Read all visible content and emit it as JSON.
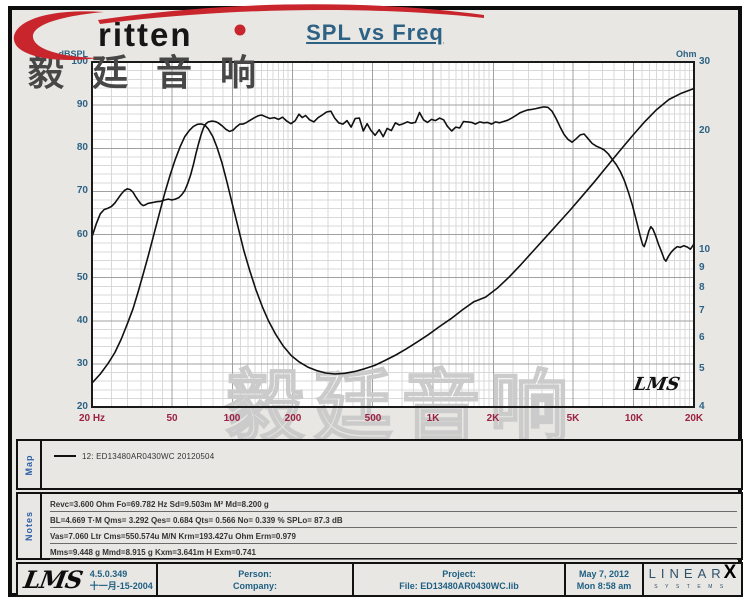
{
  "brand": {
    "logo_text": "ritten",
    "swoosh_color": "#c8252c"
  },
  "title": "SPL vs Freq",
  "watermark": {
    "top": "毅廷音响",
    "bottom": "毅廷音响"
  },
  "chart_data": {
    "type": "line",
    "title": "SPL vs Freq",
    "left_axis": {
      "label": "dBSPL",
      "range": [
        20,
        100
      ],
      "ticks": [
        100,
        90,
        80,
        70,
        60,
        50,
        40,
        30,
        20
      ]
    },
    "right_axis": {
      "label": "Ohm",
      "scale": "log",
      "range": [
        4,
        30
      ],
      "ticks": [
        30,
        20,
        10,
        9,
        8,
        7,
        6,
        5,
        4
      ]
    },
    "x_axis": {
      "scale": "log",
      "range": [
        20,
        20000
      ],
      "ticks": [
        {
          "f": 20,
          "label": "20 Hz"
        },
        {
          "f": 50,
          "label": "50"
        },
        {
          "f": 100,
          "label": "100"
        },
        {
          "f": 200,
          "label": "200"
        },
        {
          "f": 500,
          "label": "500"
        },
        {
          "f": 1000,
          "label": "1K"
        },
        {
          "f": 2000,
          "label": "2K"
        },
        {
          "f": 5000,
          "label": "5K"
        },
        {
          "f": 10000,
          "label": "10K"
        },
        {
          "f": 20000,
          "label": "20K"
        }
      ]
    },
    "grid": {
      "major_freqs": [
        50,
        100,
        200,
        500,
        1000,
        2000,
        5000,
        10000,
        20000
      ],
      "minor_freqs": [
        25,
        30,
        35,
        40,
        45,
        60,
        70,
        80,
        90,
        110,
        120,
        130,
        140,
        150,
        160,
        170,
        180,
        190,
        250,
        300,
        350,
        400,
        450,
        600,
        700,
        800,
        900,
        1100,
        1200,
        1300,
        1400,
        1500,
        1600,
        1700,
        1800,
        1900,
        2500,
        3000,
        3500,
        4000,
        4500,
        6000,
        7000,
        8000,
        9000,
        11000,
        12000,
        13000,
        14000,
        15000,
        16000,
        17000,
        18000,
        19000
      ],
      "db_major_step": 10,
      "db_minor_step": 2
    },
    "lms_mark": "LMS",
    "series": [
      {
        "name": "SPL (dB)",
        "axis": "left",
        "points": [
          [
            20,
            59.5
          ],
          [
            21,
            62.5
          ],
          [
            22,
            64.8
          ],
          [
            23,
            65.8
          ],
          [
            24,
            66.1
          ],
          [
            25,
            66.5
          ],
          [
            26,
            67.3
          ],
          [
            27,
            68.4
          ],
          [
            28,
            69.4
          ],
          [
            29,
            70.2
          ],
          [
            30,
            70.6
          ],
          [
            31,
            70.4
          ],
          [
            32,
            69.8
          ],
          [
            33,
            68.8
          ],
          [
            34,
            67.9
          ],
          [
            35,
            67.1
          ],
          [
            36,
            66.7
          ],
          [
            37,
            66.9
          ],
          [
            38,
            67.2
          ],
          [
            40,
            67.4
          ],
          [
            42,
            67.6
          ],
          [
            44,
            67.7
          ],
          [
            46,
            68.0
          ],
          [
            48,
            68.2
          ],
          [
            50,
            68.0
          ],
          [
            52,
            68.2
          ],
          [
            54,
            68.5
          ],
          [
            56,
            69.2
          ],
          [
            58,
            70.2
          ],
          [
            60,
            71.8
          ],
          [
            62,
            73.8
          ],
          [
            64,
            76.2
          ],
          [
            66,
            78.8
          ],
          [
            68,
            81.2
          ],
          [
            70,
            83.2
          ],
          [
            72,
            84.8
          ],
          [
            74,
            85.7
          ],
          [
            76,
            86.1
          ],
          [
            79,
            86.3
          ],
          [
            82,
            86.2
          ],
          [
            85,
            85.9
          ],
          [
            89,
            85.2
          ],
          [
            93,
            84.4
          ],
          [
            97,
            83.9
          ],
          [
            101,
            84.2
          ],
          [
            105,
            85.0
          ],
          [
            109,
            85.6
          ],
          [
            113,
            85.6
          ],
          [
            117,
            85.9
          ],
          [
            122,
            86.4
          ],
          [
            128,
            87.0
          ],
          [
            134,
            87.5
          ],
          [
            140,
            87.7
          ],
          [
            147,
            87.3
          ],
          [
            154,
            86.9
          ],
          [
            162,
            87.1
          ],
          [
            170,
            86.7
          ],
          [
            178,
            87.2
          ],
          [
            187,
            86.3
          ],
          [
            196,
            85.7
          ],
          [
            206,
            86.4
          ],
          [
            215,
            87.9
          ],
          [
            223,
            87.1
          ],
          [
            232,
            87.6
          ],
          [
            243,
            86.6
          ],
          [
            255,
            86.1
          ],
          [
            268,
            87.1
          ],
          [
            281,
            87.7
          ],
          [
            295,
            88.4
          ],
          [
            310,
            88.6
          ],
          [
            324,
            87.0
          ],
          [
            339,
            85.9
          ],
          [
            356,
            85.6
          ],
          [
            373,
            86.4
          ],
          [
            391,
            84.9
          ],
          [
            410,
            86.9
          ],
          [
            430,
            87.0
          ],
          [
            450,
            84.0
          ],
          [
            470,
            85.7
          ],
          [
            492,
            84.1
          ],
          [
            515,
            83.0
          ],
          [
            540,
            84.3
          ],
          [
            565,
            82.7
          ],
          [
            592,
            84.6
          ],
          [
            620,
            84.1
          ],
          [
            650,
            85.9
          ],
          [
            680,
            85.4
          ],
          [
            712,
            85.7
          ],
          [
            746,
            86.1
          ],
          [
            781,
            85.8
          ],
          [
            818,
            86.0
          ],
          [
            857,
            88.3
          ],
          [
            897,
            86.6
          ],
          [
            940,
            86.0
          ],
          [
            984,
            86.7
          ],
          [
            1030,
            86.4
          ],
          [
            1080,
            87.0
          ],
          [
            1130,
            86.6
          ],
          [
            1180,
            85.1
          ],
          [
            1240,
            84.0
          ],
          [
            1300,
            84.9
          ],
          [
            1360,
            84.7
          ],
          [
            1420,
            86.2
          ],
          [
            1490,
            86.1
          ],
          [
            1560,
            86.0
          ],
          [
            1630,
            85.6
          ],
          [
            1710,
            86.1
          ],
          [
            1790,
            85.9
          ],
          [
            1870,
            86.0
          ],
          [
            1960,
            85.6
          ],
          [
            2050,
            86.1
          ],
          [
            2150,
            85.9
          ],
          [
            2250,
            86.2
          ],
          [
            2360,
            86.5
          ],
          [
            2470,
            87.0
          ],
          [
            2590,
            87.6
          ],
          [
            2710,
            88.2
          ],
          [
            2840,
            88.6
          ],
          [
            2970,
            88.9
          ],
          [
            3110,
            89.0
          ],
          [
            3260,
            89.2
          ],
          [
            3410,
            89.4
          ],
          [
            3570,
            89.6
          ],
          [
            3740,
            89.5
          ],
          [
            3920,
            88.6
          ],
          [
            4100,
            87.0
          ],
          [
            4300,
            85.0
          ],
          [
            4500,
            83.2
          ],
          [
            4720,
            82.0
          ],
          [
            4940,
            81.4
          ],
          [
            5170,
            82.2
          ],
          [
            5420,
            83.1
          ],
          [
            5670,
            83.3
          ],
          [
            5940,
            82.2
          ],
          [
            6220,
            81.1
          ],
          [
            6510,
            80.5
          ],
          [
            6820,
            80.1
          ],
          [
            7140,
            79.6
          ],
          [
            7480,
            78.7
          ],
          [
            7830,
            77.4
          ],
          [
            8200,
            76.2
          ],
          [
            8590,
            74.6
          ],
          [
            9000,
            72.5
          ],
          [
            9420,
            69.8
          ],
          [
            9860,
            66.8
          ],
          [
            10330,
            63.2
          ],
          [
            10810,
            59.5
          ],
          [
            11100,
            57.6
          ],
          [
            11300,
            57.2
          ],
          [
            11600,
            58.8
          ],
          [
            11900,
            60.8
          ],
          [
            12200,
            61.8
          ],
          [
            12500,
            61.2
          ],
          [
            12900,
            59.6
          ],
          [
            13300,
            57.8
          ],
          [
            13800,
            55.9
          ],
          [
            14200,
            54.3
          ],
          [
            14500,
            53.8
          ],
          [
            14900,
            54.9
          ],
          [
            15400,
            55.9
          ],
          [
            15900,
            56.6
          ],
          [
            16500,
            57.2
          ],
          [
            17100,
            57.0
          ],
          [
            17800,
            57.4
          ],
          [
            18500,
            57.1
          ],
          [
            19200,
            56.6
          ],
          [
            19600,
            57.2
          ],
          [
            20000,
            57.8
          ]
        ]
      },
      {
        "name": "Impedance (Ohm)",
        "axis": "right",
        "points": [
          [
            20,
            4.6
          ],
          [
            22,
            4.85
          ],
          [
            24,
            5.15
          ],
          [
            26,
            5.5
          ],
          [
            28,
            5.95
          ],
          [
            30,
            6.5
          ],
          [
            32,
            7.1
          ],
          [
            34,
            7.85
          ],
          [
            36,
            8.7
          ],
          [
            38,
            9.6
          ],
          [
            40,
            10.6
          ],
          [
            43,
            12.2
          ],
          [
            46,
            13.9
          ],
          [
            49,
            15.5
          ],
          [
            52,
            17.0
          ],
          [
            55,
            18.3
          ],
          [
            58,
            19.4
          ],
          [
            61,
            20.1
          ],
          [
            64,
            20.6
          ],
          [
            67,
            20.85
          ],
          [
            70,
            20.9
          ],
          [
            73,
            20.75
          ],
          [
            76,
            20.3
          ],
          [
            80,
            19.4
          ],
          [
            84,
            18.2
          ],
          [
            89,
            16.6
          ],
          [
            94,
            14.9
          ],
          [
            100,
            13.1
          ],
          [
            107,
            11.4
          ],
          [
            114,
            10.0
          ],
          [
            122,
            8.9
          ],
          [
            131,
            7.95
          ],
          [
            141,
            7.2
          ],
          [
            152,
            6.6
          ],
          [
            165,
            6.1
          ],
          [
            180,
            5.7
          ],
          [
            197,
            5.4
          ],
          [
            216,
            5.2
          ],
          [
            238,
            5.05
          ],
          [
            263,
            4.95
          ],
          [
            292,
            4.88
          ],
          [
            325,
            4.85
          ],
          [
            363,
            4.87
          ],
          [
            406,
            4.92
          ],
          [
            456,
            5.0
          ],
          [
            513,
            5.1
          ],
          [
            578,
            5.25
          ],
          [
            653,
            5.42
          ],
          [
            738,
            5.62
          ],
          [
            836,
            5.85
          ],
          [
            948,
            6.1
          ],
          [
            1080,
            6.4
          ],
          [
            1230,
            6.7
          ],
          [
            1400,
            7.05
          ],
          [
            1600,
            7.4
          ],
          [
            1830,
            7.6
          ],
          [
            2090,
            8.0
          ],
          [
            2400,
            8.55
          ],
          [
            2750,
            9.2
          ],
          [
            3160,
            9.95
          ],
          [
            3630,
            10.75
          ],
          [
            4180,
            11.65
          ],
          [
            4810,
            12.6
          ],
          [
            5540,
            13.7
          ],
          [
            6380,
            14.9
          ],
          [
            7360,
            16.3
          ],
          [
            8490,
            17.8
          ],
          [
            9790,
            19.4
          ],
          [
            11300,
            21.1
          ],
          [
            13000,
            22.7
          ],
          [
            15000,
            24.1
          ],
          [
            17300,
            25.0
          ],
          [
            20000,
            25.7
          ]
        ]
      }
    ]
  },
  "map": {
    "label": "Map",
    "legend": "12: ED13480AR0430WC 20120504"
  },
  "notes": {
    "label": "Notes",
    "lines": [
      "Revc=3.600 Ohm  Fo=69.782 Hz  Sd=9.503m M²  Md=8.200 g",
      "BL=4.669 T·M  Qms= 3.292  Qes= 0.684  Qts= 0.566  No= 0.339 %  SPLo= 87.3 dB",
      "Vas=7.060 Ltr  Cms=550.574u M/N  Krm=193.427u Ohm  Erm=0.979",
      "Mms=9.448 g  Mmd=8.915 g  Kxm=3.641m H  Exm=0.741"
    ]
  },
  "footer": {
    "lms_logo": "LMS",
    "version": "4.5.0.349",
    "version_date": "十一月-15-2004",
    "person_label": "Person:",
    "company_label": "Company:",
    "project_label": "Project:",
    "file_label": "File: ED13480AR0430WC.lib",
    "date": "May 7, 2012",
    "time": "Mon  8:58 am",
    "linearx_main": "LINEAR",
    "linearx_x": "X",
    "linearx_sub": "SYSTEMS"
  },
  "colors": {
    "accent_red": "#c8252c",
    "axis_blue": "#2d6285",
    "freq_maroon": "#9b2242",
    "sidebar_blue": "#2d5fa6",
    "footer_teal": "#1e5f83",
    "curve_black": "#111111",
    "grid_major": "#a0a0a0",
    "grid_minor": "#d9d9d9"
  }
}
